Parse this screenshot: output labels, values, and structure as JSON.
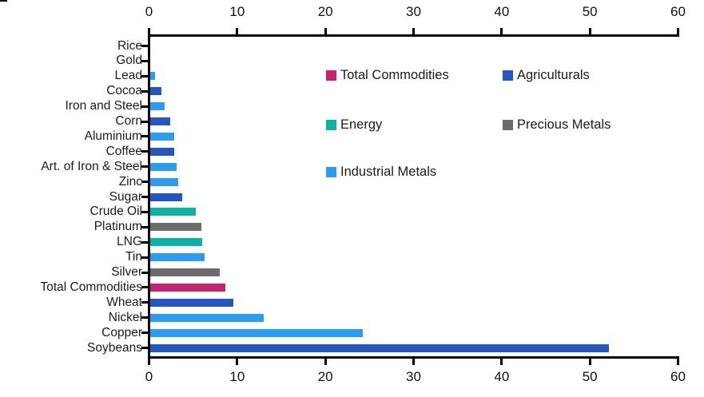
{
  "figure": {
    "background": "#ffffff",
    "axis_color": "#000000",
    "text_color": "#1b1b1b"
  },
  "chart_data": {
    "type": "bar",
    "orientation": "horizontal",
    "title": "",
    "xlabel": "",
    "ylabel": "",
    "xlim": [
      0,
      60
    ],
    "x_ticks": [
      0,
      10,
      20,
      30,
      40,
      50,
      60
    ],
    "x_axis_positions": [
      "top",
      "bottom"
    ],
    "grid": false,
    "legend_position": "inside upper-right, two columns",
    "groups": {
      "Total Commodities": "#C8216F",
      "Agriculturals": "#2456C4",
      "Energy": "#0DB2A6",
      "Precious Metals": "#6B6B6B",
      "Industrial Metals": "#2B9CF4"
    },
    "legend": [
      {
        "label": "Total Commodities",
        "color": "#C8216F"
      },
      {
        "label": "Agriculturals",
        "color": "#2456C4"
      },
      {
        "label": "Energy",
        "color": "#0DB2A6"
      },
      {
        "label": "Precious Metals",
        "color": "#6B6B6B"
      },
      {
        "label": "Industrial Metals",
        "color": "#2B9CF4"
      }
    ],
    "bars": [
      {
        "category": "Rice",
        "value": 0.0,
        "group": "Agriculturals"
      },
      {
        "category": "Gold",
        "value": 0.0,
        "group": "Precious Metals"
      },
      {
        "category": "Lead",
        "value": 0.5,
        "group": "Industrial Metals"
      },
      {
        "category": "Cocoa",
        "value": 1.3,
        "group": "Agriculturals"
      },
      {
        "category": "Iron and Steel",
        "value": 1.6,
        "group": "Industrial Metals"
      },
      {
        "category": "Corn",
        "value": 2.3,
        "group": "Agriculturals"
      },
      {
        "category": "Aluminium",
        "value": 2.7,
        "group": "Industrial Metals"
      },
      {
        "category": "Coffee",
        "value": 2.7,
        "group": "Agriculturals"
      },
      {
        "category": "Art. of Iron & Steel",
        "value": 3.0,
        "group": "Industrial Metals"
      },
      {
        "category": "Zinc",
        "value": 3.2,
        "group": "Industrial Metals"
      },
      {
        "category": "Sugar",
        "value": 3.6,
        "group": "Agriculturals"
      },
      {
        "category": "Crude Oil",
        "value": 5.2,
        "group": "Energy"
      },
      {
        "category": "Platinum",
        "value": 5.8,
        "group": "Precious Metals"
      },
      {
        "category": "LNG",
        "value": 5.9,
        "group": "Energy"
      },
      {
        "category": "Tin",
        "value": 6.2,
        "group": "Industrial Metals"
      },
      {
        "category": "Silver",
        "value": 7.9,
        "group": "Precious Metals"
      },
      {
        "category": "Total Commodities",
        "value": 8.5,
        "group": "Total Commodities"
      },
      {
        "category": "Wheat",
        "value": 9.4,
        "group": "Agriculturals"
      },
      {
        "category": "Nickel",
        "value": 12.9,
        "group": "Industrial Metals"
      },
      {
        "category": "Copper",
        "value": 24.1,
        "group": "Industrial Metals"
      },
      {
        "category": "Soybeans",
        "value": 52.0,
        "group": "Agriculturals"
      }
    ]
  }
}
